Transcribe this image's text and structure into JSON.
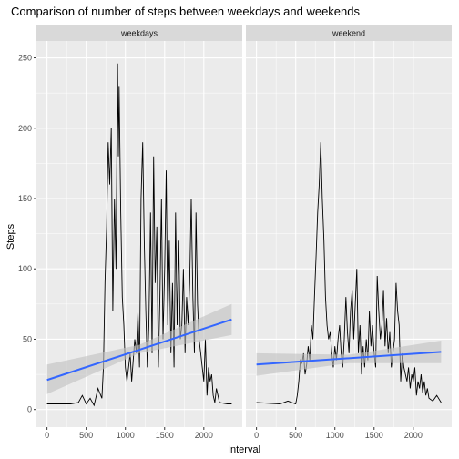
{
  "chart_data": {
    "type": "line",
    "title": "Comparison of number of steps between weekdays and weekends",
    "xlabel": "Interval",
    "ylabel": "Steps",
    "xlim": [
      -135,
      2490
    ],
    "ylim": [
      -12.5,
      262
    ],
    "x_ticks": [
      0,
      500,
      1000,
      1500,
      2000
    ],
    "y_ticks": [
      0,
      50,
      100,
      150,
      200,
      250
    ],
    "grid": true,
    "legend": "none",
    "colors": {
      "panel_background": "#ebebeb",
      "strip_background": "#d9d9d9",
      "grid_major": "#ffffff",
      "series_line": "#000000",
      "trend_line": "#3366ff",
      "confidence_band": "#bfbfbf"
    },
    "panels": [
      {
        "label": "weekdays",
        "series": [
          {
            "values": [
              [
                0,
                4
              ],
              [
                300,
                4
              ],
              [
                400,
                5
              ],
              [
                450,
                10
              ],
              [
                500,
                4
              ],
              [
                550,
                8
              ],
              [
                600,
                3
              ],
              [
                650,
                15
              ],
              [
                700,
                8
              ],
              [
                720,
                30
              ],
              [
                740,
                90
              ],
              [
                760,
                130
              ],
              [
                780,
                190
              ],
              [
                800,
                160
              ],
              [
                820,
                200
              ],
              [
                840,
                70
              ],
              [
                860,
                150
              ],
              [
                880,
                100
              ],
              [
                900,
                246
              ],
              [
                910,
                180
              ],
              [
                920,
                230
              ],
              [
                940,
                140
              ],
              [
                960,
                80
              ],
              [
                980,
                60
              ],
              [
                1000,
                30
              ],
              [
                1020,
                20
              ],
              [
                1040,
                30
              ],
              [
                1060,
                40
              ],
              [
                1080,
                20
              ],
              [
                1100,
                35
              ],
              [
                1120,
                50
              ],
              [
                1140,
                40
              ],
              [
                1160,
                70
              ],
              [
                1180,
                30
              ],
              [
                1200,
                150
              ],
              [
                1220,
                190
              ],
              [
                1240,
                120
              ],
              [
                1260,
                70
              ],
              [
                1280,
                30
              ],
              [
                1300,
                60
              ],
              [
                1320,
                140
              ],
              [
                1340,
                40
              ],
              [
                1360,
                180
              ],
              [
                1380,
                90
              ],
              [
                1400,
                130
              ],
              [
                1420,
                30
              ],
              [
                1440,
                80
              ],
              [
                1460,
                150
              ],
              [
                1480,
                50
              ],
              [
                1500,
                100
              ],
              [
                1520,
                170
              ],
              [
                1540,
                60
              ],
              [
                1560,
                120
              ],
              [
                1580,
                40
              ],
              [
                1600,
                90
              ],
              [
                1620,
                30
              ],
              [
                1640,
                140
              ],
              [
                1660,
                60
              ],
              [
                1680,
                120
              ],
              [
                1700,
                50
              ],
              [
                1720,
                60
              ],
              [
                1740,
                100
              ],
              [
                1760,
                40
              ],
              [
                1780,
                80
              ],
              [
                1800,
                60
              ],
              [
                1820,
                90
              ],
              [
                1840,
                150
              ],
              [
                1860,
                80
              ],
              [
                1880,
                40
              ],
              [
                1900,
                140
              ],
              [
                1920,
                75
              ],
              [
                1940,
                50
              ],
              [
                1960,
                40
              ],
              [
                1980,
                30
              ],
              [
                2000,
                20
              ],
              [
                2020,
                50
              ],
              [
                2040,
                10
              ],
              [
                2060,
                30
              ],
              [
                2080,
                20
              ],
              [
                2100,
                25
              ],
              [
                2120,
                10
              ],
              [
                2140,
                5
              ],
              [
                2160,
                15
              ],
              [
                2200,
                5
              ],
              [
                2300,
                4
              ],
              [
                2355,
                4
              ]
            ]
          }
        ],
        "trend": [
          [
            0,
            21
          ],
          [
            2355,
            64
          ]
        ],
        "confidence_band": {
          "x": [
            0,
            1178,
            2355
          ],
          "upper": [
            32,
            46,
            75
          ],
          "lower": [
            11,
            40,
            53
          ]
        }
      },
      {
        "label": "weekend",
        "series": [
          {
            "values": [
              [
                0,
                5
              ],
              [
                300,
                4
              ],
              [
                400,
                6
              ],
              [
                500,
                4
              ],
              [
                520,
                10
              ],
              [
                540,
                20
              ],
              [
                560,
                35
              ],
              [
                580,
                33
              ],
              [
                600,
                40
              ],
              [
                620,
                25
              ],
              [
                640,
                32
              ],
              [
                660,
                45
              ],
              [
                680,
                35
              ],
              [
                700,
                60
              ],
              [
                720,
                50
              ],
              [
                740,
                80
              ],
              [
                760,
                110
              ],
              [
                780,
                140
              ],
              [
                800,
                160
              ],
              [
                820,
                190
              ],
              [
                840,
                150
              ],
              [
                860,
                120
              ],
              [
                880,
                80
              ],
              [
                900,
                60
              ],
              [
                920,
                50
              ],
              [
                940,
                55
              ],
              [
                960,
                40
              ],
              [
                980,
                30
              ],
              [
                1000,
                45
              ],
              [
                1020,
                35
              ],
              [
                1040,
                50
              ],
              [
                1060,
                60
              ],
              [
                1080,
                40
              ],
              [
                1100,
                30
              ],
              [
                1120,
                50
              ],
              [
                1140,
                80
              ],
              [
                1160,
                55
              ],
              [
                1180,
                40
              ],
              [
                1200,
                70
              ],
              [
                1220,
                85
              ],
              [
                1240,
                50
              ],
              [
                1260,
                75
              ],
              [
                1280,
                100
              ],
              [
                1300,
                40
              ],
              [
                1320,
                60
              ],
              [
                1340,
                25
              ],
              [
                1360,
                45
              ],
              [
                1380,
                30
              ],
              [
                1400,
                50
              ],
              [
                1420,
                35
              ],
              [
                1440,
                70
              ],
              [
                1460,
                45
              ],
              [
                1480,
                60
              ],
              [
                1500,
                40
              ],
              [
                1520,
                30
              ],
              [
                1540,
                95
              ],
              [
                1560,
                70
              ],
              [
                1580,
                50
              ],
              [
                1600,
                60
              ],
              [
                1620,
                85
              ],
              [
                1640,
                45
              ],
              [
                1660,
                65
              ],
              [
                1680,
                40
              ],
              [
                1700,
                55
              ],
              [
                1720,
                30
              ],
              [
                1740,
                40
              ],
              [
                1760,
                50
              ],
              [
                1780,
                90
              ],
              [
                1800,
                70
              ],
              [
                1820,
                60
              ],
              [
                1840,
                20
              ],
              [
                1860,
                40
              ],
              [
                1880,
                30
              ],
              [
                1900,
                25
              ],
              [
                1920,
                20
              ],
              [
                1940,
                30
              ],
              [
                1960,
                15
              ],
              [
                1980,
                25
              ],
              [
                2000,
                20
              ],
              [
                2020,
                30
              ],
              [
                2040,
                10
              ],
              [
                2060,
                20
              ],
              [
                2080,
                15
              ],
              [
                2100,
                25
              ],
              [
                2120,
                12
              ],
              [
                2140,
                20
              ],
              [
                2160,
                10
              ],
              [
                2180,
                15
              ],
              [
                2200,
                8
              ],
              [
                2250,
                6
              ],
              [
                2300,
                10
              ],
              [
                2355,
                5
              ]
            ]
          }
        ],
        "trend": [
          [
            0,
            32
          ],
          [
            2355,
            41
          ]
        ],
        "confidence_band": {
          "x": [
            0,
            1178,
            2355
          ],
          "upper": [
            40,
            39,
            49
          ],
          "lower": [
            24,
            33,
            33
          ]
        }
      }
    ]
  }
}
